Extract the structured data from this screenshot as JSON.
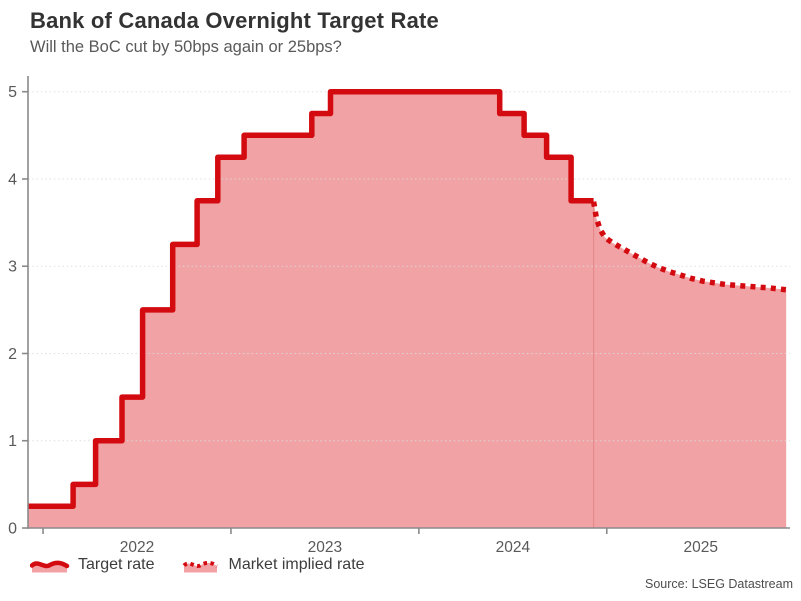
{
  "header": {
    "title": "Bank of Canada Overnight Target Rate",
    "subtitle": "Will the BoC cut by 50bps again or 25bps?"
  },
  "legend": {
    "items": [
      {
        "label": "Target rate",
        "style": "solid"
      },
      {
        "label": "Market implied rate",
        "style": "dotted"
      }
    ]
  },
  "footer": {
    "source": "Source: LSEG Datastream"
  },
  "colors": {
    "line": "#d30b10",
    "fill": "#ef9597",
    "fill_opacity": 0.88,
    "axis": "#8a8a8a",
    "tick_label": "#595959",
    "grid": "#dadada",
    "now_line": "rgba(217,106,106,0.5)"
  },
  "chart_data": {
    "type": "area",
    "title": "Bank of Canada Overnight Target Rate",
    "xlabel": "",
    "ylabel": "",
    "x_domain": [
      2021.92,
      2025.975
    ],
    "y_domain": [
      0,
      5.18
    ],
    "y_ticks": [
      0,
      1,
      2,
      3,
      4,
      5
    ],
    "x_tick_marks": [
      2022,
      2023,
      2024,
      2025
    ],
    "x_tick_labels": [
      {
        "pos": 2022.5,
        "label": "2022"
      },
      {
        "pos": 2023.5,
        "label": "2023"
      },
      {
        "pos": 2024.5,
        "label": "2024"
      },
      {
        "pos": 2025.5,
        "label": "2025"
      }
    ],
    "grid": "horizontal-dotted",
    "legend_position": "bottom-left",
    "forecast_divider_x": 2024.93,
    "series": [
      {
        "name": "Target rate",
        "type": "step",
        "style": "solid",
        "end_x": 2024.93,
        "points": [
          [
            2021.92,
            0.25
          ],
          [
            2022.16,
            0.5
          ],
          [
            2022.28,
            1.0
          ],
          [
            2022.42,
            1.5
          ],
          [
            2022.53,
            2.5
          ],
          [
            2022.69,
            3.25
          ],
          [
            2022.82,
            3.75
          ],
          [
            2022.93,
            4.25
          ],
          [
            2023.07,
            4.5
          ],
          [
            2023.43,
            4.75
          ],
          [
            2023.53,
            5.0
          ],
          [
            2024.43,
            4.75
          ],
          [
            2024.56,
            4.5
          ],
          [
            2024.68,
            4.25
          ],
          [
            2024.81,
            3.75
          ]
        ]
      },
      {
        "name": "Market implied rate",
        "type": "line",
        "style": "dotted",
        "points": [
          [
            2024.93,
            3.74
          ],
          [
            2024.945,
            3.55
          ],
          [
            2024.965,
            3.42
          ],
          [
            2024.99,
            3.33
          ],
          [
            2025.03,
            3.27
          ],
          [
            2025.07,
            3.22
          ],
          [
            2025.12,
            3.16
          ],
          [
            2025.17,
            3.1
          ],
          [
            2025.22,
            3.04
          ],
          [
            2025.27,
            2.99
          ],
          [
            2025.33,
            2.94
          ],
          [
            2025.39,
            2.9
          ],
          [
            2025.45,
            2.86
          ],
          [
            2025.51,
            2.83
          ],
          [
            2025.57,
            2.81
          ],
          [
            2025.63,
            2.79
          ],
          [
            2025.69,
            2.78
          ],
          [
            2025.75,
            2.77
          ],
          [
            2025.81,
            2.76
          ],
          [
            2025.87,
            2.75
          ],
          [
            2025.955,
            2.73
          ]
        ]
      }
    ]
  }
}
